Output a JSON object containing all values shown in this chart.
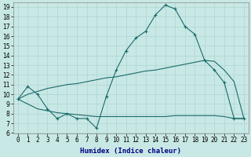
{
  "xlabel": "Humidex (Indice chaleur)",
  "x": [
    0,
    1,
    2,
    3,
    4,
    5,
    6,
    7,
    8,
    9,
    10,
    11,
    12,
    13,
    14,
    15,
    16,
    17,
    18,
    19,
    20,
    21,
    22,
    23
  ],
  "line_main": [
    9.5,
    10.8,
    10.0,
    8.5,
    7.5,
    8.0,
    7.5,
    7.5,
    6.5,
    9.8,
    12.5,
    14.5,
    15.8,
    16.5,
    18.2,
    19.2,
    18.8,
    17.0,
    16.2,
    13.5,
    12.5,
    11.2,
    7.5,
    7.5
  ],
  "line_upper": [
    9.5,
    10.0,
    10.3,
    10.6,
    10.8,
    11.0,
    11.1,
    11.3,
    11.5,
    11.7,
    11.8,
    12.0,
    12.2,
    12.4,
    12.5,
    12.7,
    12.9,
    13.1,
    13.3,
    13.5,
    13.4,
    12.5,
    11.3,
    7.5
  ],
  "line_lower": [
    9.5,
    9.0,
    8.5,
    8.3,
    8.1,
    8.0,
    7.9,
    7.8,
    7.7,
    7.7,
    7.7,
    7.7,
    7.7,
    7.7,
    7.7,
    7.7,
    7.8,
    7.8,
    7.8,
    7.8,
    7.8,
    7.7,
    7.5,
    7.5
  ],
  "ylim_min": 6,
  "ylim_max": 19.5,
  "yticks": [
    6,
    7,
    8,
    9,
    10,
    11,
    12,
    13,
    14,
    15,
    16,
    17,
    18,
    19
  ],
  "bg_color": "#c8e8e5",
  "line_color": "#1a6b6b",
  "grid_color": "#b0d4d0",
  "xlabel_color": "#000080",
  "tick_fontsize": 5.5,
  "xlabel_fontsize": 6.5
}
